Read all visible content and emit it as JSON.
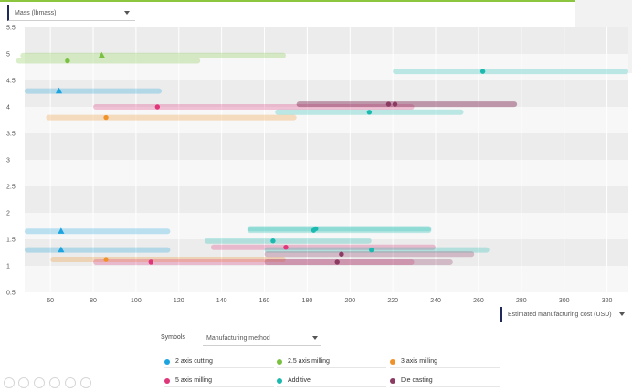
{
  "y_axis_dropdown": {
    "label": "Mass (lbmass)"
  },
  "x_axis_dropdown": {
    "label": "Estimated manufacturing cost (USD)"
  },
  "symbols": {
    "label": "Symbols",
    "dropdown": "Manufacturing method"
  },
  "legend": [
    {
      "name": "2 axis cutting",
      "color": "#1ca4e0"
    },
    {
      "name": "2.5 axis milling",
      "color": "#7ac142"
    },
    {
      "name": "3 axis milling",
      "color": "#f0922a"
    },
    {
      "name": "5 axis milling",
      "color": "#e0367a"
    },
    {
      "name": "Additive",
      "color": "#1bb9b0"
    },
    {
      "name": "Die casting",
      "color": "#8b3a62"
    }
  ],
  "chart_data": {
    "type": "scatter",
    "xlim": [
      48,
      330
    ],
    "ylim": [
      0.5,
      5.5
    ],
    "x_ticks": [
      60,
      80,
      100,
      120,
      140,
      160,
      180,
      200,
      220,
      240,
      260,
      280,
      300,
      320
    ],
    "y_ticks": [
      0.5,
      1,
      1.5,
      2,
      2.5,
      3,
      3.5,
      4,
      4.5,
      5,
      5.5
    ],
    "grid": true,
    "series": [
      {
        "name": "2 axis cutting",
        "color": "#1ca4e0",
        "marker": "triangle",
        "points": [
          {
            "x": 64,
            "y": 4.3,
            "range": [
              48,
              112
            ]
          },
          {
            "x": 65,
            "y": 1.65,
            "range": [
              48,
              116
            ]
          },
          {
            "x": 65,
            "y": 1.3,
            "range": [
              48,
              116
            ]
          }
        ]
      },
      {
        "name": "2.5 axis milling",
        "color": "#7ac142",
        "marker": "mixed",
        "points": [
          {
            "x": 84,
            "y": 4.97,
            "range": [
              46,
              170
            ]
          },
          {
            "x": 68,
            "y": 4.87,
            "range": [
              44,
              130
            ]
          }
        ]
      },
      {
        "name": "3 axis milling",
        "color": "#f0922a",
        "marker": "circle",
        "points": [
          {
            "x": 86,
            "y": 3.8,
            "range": [
              58,
              175
            ]
          },
          {
            "x": 86,
            "y": 1.12,
            "range": [
              60,
              170
            ]
          }
        ]
      },
      {
        "name": "5 axis milling",
        "color": "#e0367a",
        "marker": "circle",
        "points": [
          {
            "x": 110,
            "y": 4.0,
            "range": [
              80,
              230
            ]
          },
          {
            "x": 107,
            "y": 1.07,
            "range": [
              80,
              230
            ]
          },
          {
            "x": 170,
            "y": 1.35,
            "range": [
              135,
              240
            ]
          }
        ]
      },
      {
        "name": "Additive",
        "color": "#1bb9b0",
        "marker": "circle",
        "points": [
          {
            "x": 262,
            "y": 4.67,
            "range": [
              220,
              330
            ]
          },
          {
            "x": 209,
            "y": 3.9,
            "range": [
              165,
              253
            ]
          },
          {
            "x": 184,
            "y": 1.7,
            "range": [
              152,
              238
            ]
          },
          {
            "x": 183,
            "y": 1.67,
            "range": [
              152,
              238
            ]
          },
          {
            "x": 164,
            "y": 1.47,
            "range": [
              132,
              210
            ]
          },
          {
            "x": 210,
            "y": 1.3,
            "range": [
              160,
              265
            ]
          }
        ]
      },
      {
        "name": "Die casting",
        "color": "#8b3a62",
        "marker": "circle",
        "points": [
          {
            "x": 218,
            "y": 4.05,
            "range": [
              175,
              278
            ]
          },
          {
            "x": 221,
            "y": 4.05,
            "range": [
              175,
              278
            ]
          },
          {
            "x": 196,
            "y": 1.22,
            "range": [
              160,
              258
            ]
          },
          {
            "x": 194,
            "y": 1.07,
            "range": [
              160,
              248
            ]
          }
        ]
      }
    ]
  }
}
